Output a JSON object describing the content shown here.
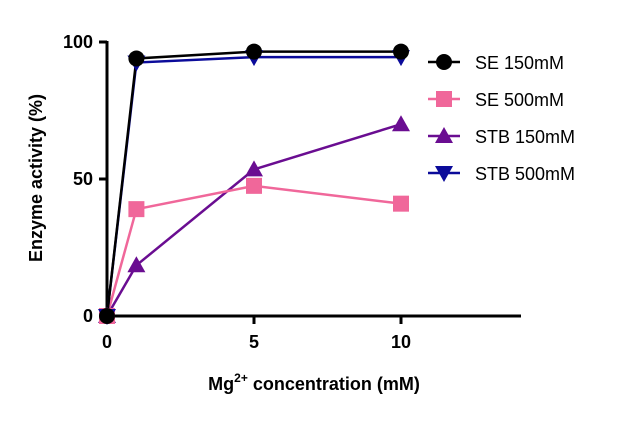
{
  "chart_data": {
    "type": "line",
    "xlabel_main": "Mg",
    "xlabel_sup": "2+",
    "xlabel_rest": " concentration (mM)",
    "ylabel": "Enzyme activity (%)",
    "xlim": [
      0,
      14
    ],
    "ylim": [
      0,
      100
    ],
    "xticks": [
      "0",
      "5",
      "10"
    ],
    "yticks": [
      "0",
      "50",
      "100"
    ],
    "grid": false,
    "legend_position": "right",
    "x": [
      0,
      1,
      5,
      10
    ],
    "series": [
      {
        "name": "SE 150mM",
        "values": [
          0,
          94,
          96.5,
          96.5
        ],
        "color": "#000000",
        "marker": "circle"
      },
      {
        "name": "SE 500mM",
        "values": [
          0,
          39,
          47.5,
          41
        ],
        "color": "#f0679a",
        "marker": "square"
      },
      {
        "name": "STB 150mM",
        "values": [
          0,
          18.5,
          53.5,
          70
        ],
        "color": "#6a0d91",
        "marker": "triangle-up"
      },
      {
        "name": "STB 500mM",
        "values": [
          0,
          92.5,
          94.5,
          94.5
        ],
        "color": "#0b0b9a",
        "marker": "triangle-down"
      }
    ]
  }
}
